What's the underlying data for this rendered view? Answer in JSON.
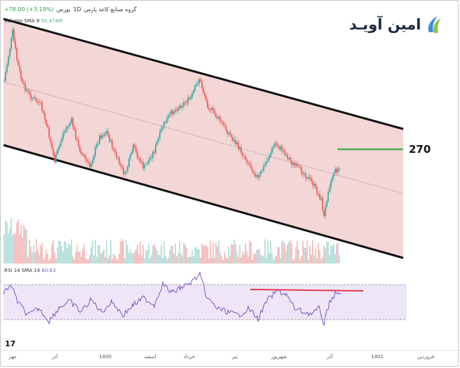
{
  "header": {
    "ticker_title": "گروه صنایع کاغذ پارس",
    "interval": "1D",
    "exchange": "بورس",
    "change": "+78.00 (+3.19%)"
  },
  "volume_indicator": {
    "label": "Volume SMA 9",
    "value": "50.474M"
  },
  "logo": {
    "text": "امین آویـد"
  },
  "level": {
    "label": "270"
  },
  "rsi_indicator": {
    "label": "RSI 14 SMA 14",
    "value": "60.63"
  },
  "time_axis": {
    "ticks": [
      "مهر",
      "آذر",
      "1400",
      "اسفند",
      "خرداد",
      "تیر",
      "شهریور",
      "آذر",
      "1401",
      "فروردین"
    ]
  },
  "watermark": {
    "text": "17"
  },
  "colors": {
    "channel_fill": "#f3d6d6",
    "rsi_band": "#ece6f7",
    "candle_up": "#26a69a",
    "candle_down": "#ef5350",
    "resistance_line": "#e53950",
    "level_line": "#4caf50",
    "rsi_line": "#7e57c2"
  }
}
